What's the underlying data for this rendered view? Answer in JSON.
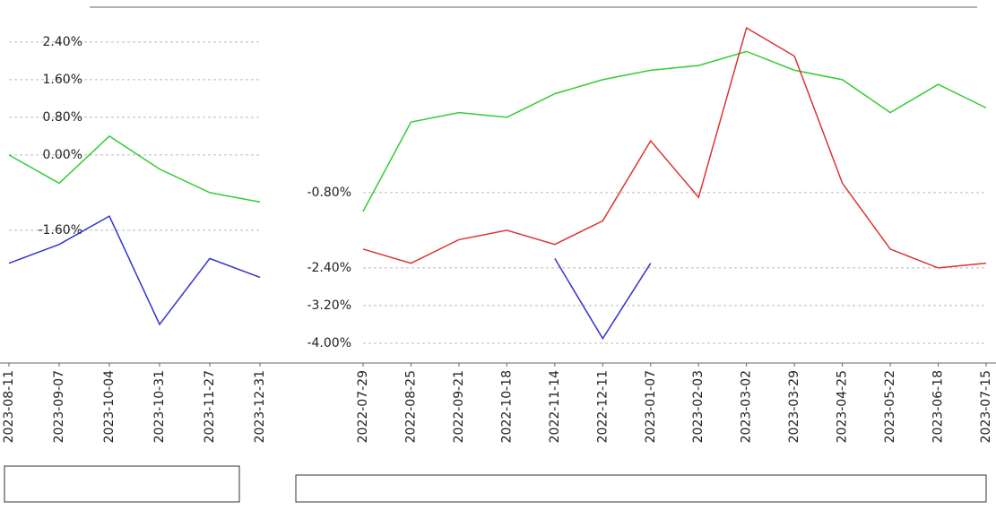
{
  "chart_data": [
    {
      "type": "line",
      "categories": [
        "2023-08-11",
        "2023-09-07",
        "2023-10-04",
        "2023-10-31",
        "2023-11-27",
        "2023-12-31"
      ],
      "series": [
        {
          "color": "#3333cc",
          "values": [
            -2.3,
            -1.9,
            -1.3,
            -3.6,
            -2.2,
            -2.6
          ]
        },
        {
          "color": "#33cc33",
          "values": [
            0.0,
            -0.6,
            0.4,
            -0.3,
            -0.8,
            -1.0
          ]
        }
      ],
      "ylim": [
        -4.42,
        3.14
      ],
      "yticks": [
        {
          "value": 2.4,
          "label": "2.40%"
        },
        {
          "value": 1.6,
          "label": "1.60%"
        },
        {
          "value": 0.8,
          "label": "0.80%"
        },
        {
          "value": 0,
          "label": "0.00%"
        },
        {
          "value": -1.6,
          "label": "-1.60%"
        }
      ],
      "grid": true
    },
    {
      "type": "line",
      "categories": [
        "2022-07-29",
        "2022-08-25",
        "2022-09-21",
        "2022-10-18",
        "2022-11-14",
        "2022-12-11",
        "2023-01-07",
        "2023-02-03",
        "2023-03-02",
        "2023-03-29",
        "2023-04-25",
        "2023-05-22",
        "2023-06-18",
        "2023-07-15"
      ],
      "series": [
        {
          "color": "#33cc33",
          "values": [
            -1.2,
            0.7,
            0.9,
            0.8,
            1.3,
            1.6,
            1.8,
            1.9,
            2.2,
            1.8,
            1.6,
            0.9,
            1.5,
            1.0
          ]
        },
        {
          "color": "#dd3333",
          "values": [
            -2.0,
            -2.3,
            -1.8,
            -1.6,
            -1.9,
            -1.4,
            0.3,
            -0.9,
            2.7,
            2.1,
            -0.6,
            -2.0,
            -2.4,
            -2.3
          ]
        },
        {
          "color": "#3333cc",
          "values": [
            null,
            null,
            null,
            null,
            -2.2,
            -3.9,
            -2.3,
            null,
            null,
            null,
            null,
            null,
            null,
            null
          ]
        }
      ],
      "ylim": [
        -4.42,
        3.14
      ],
      "yticks": [
        {
          "value": -0.8,
          "label": "-0.80%"
        },
        {
          "value": -2.4,
          "label": "-2.40%"
        },
        {
          "value": -3.2,
          "label": "-3.20%"
        },
        {
          "value": -4,
          "label": "-4.00%"
        }
      ],
      "grid": true
    }
  ]
}
